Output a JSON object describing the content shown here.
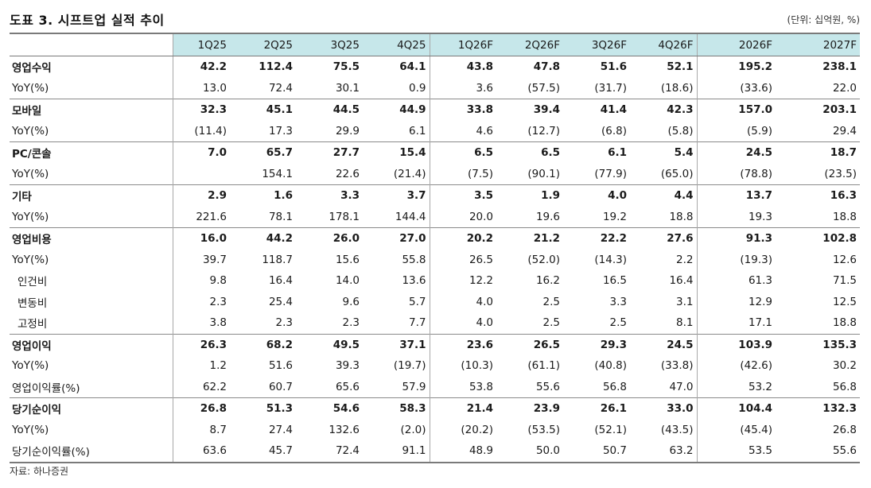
{
  "title": "도표 3. 시프트업 실적 추이",
  "unit": "(단위: 십억원, %)",
  "source": "자료: 하나증권",
  "columns": [
    "1Q25",
    "2Q25",
    "3Q25",
    "4Q25",
    "1Q26F",
    "2Q26F",
    "3Q26F",
    "4Q26F",
    "2026F",
    "2027F"
  ],
  "rows": [
    {
      "label": "영업수익",
      "values": [
        "42.2",
        "112.4",
        "75.5",
        "64.1",
        "43.8",
        "47.8",
        "51.6",
        "52.1",
        "195.2",
        "238.1"
      ]
    },
    {
      "label": "YoY(%)",
      "values": [
        "13.0",
        "72.4",
        "30.1",
        "0.9",
        "3.6",
        "(57.5)",
        "(31.7)",
        "(18.6)",
        "(33.6)",
        "22.0"
      ]
    },
    {
      "label": "모바일",
      "values": [
        "32.3",
        "45.1",
        "44.5",
        "44.9",
        "33.8",
        "39.4",
        "41.4",
        "42.3",
        "157.0",
        "203.1"
      ]
    },
    {
      "label": "YoY(%)",
      "values": [
        "(11.4)",
        "17.3",
        "29.9",
        "6.1",
        "4.6",
        "(12.7)",
        "(6.8)",
        "(5.8)",
        "(5.9)",
        "29.4"
      ]
    },
    {
      "label": "PC/콘솔",
      "values": [
        "7.0",
        "65.7",
        "27.7",
        "15.4",
        "6.5",
        "6.5",
        "6.1",
        "5.4",
        "24.5",
        "18.7"
      ]
    },
    {
      "label": "YoY(%)",
      "values": [
        "",
        "154.1",
        "22.6",
        "(21.4)",
        "(7.5)",
        "(90.1)",
        "(77.9)",
        "(65.0)",
        "(78.8)",
        "(23.5)"
      ]
    },
    {
      "label": "기타",
      "values": [
        "2.9",
        "1.6",
        "3.3",
        "3.7",
        "3.5",
        "1.9",
        "4.0",
        "4.4",
        "13.7",
        "16.3"
      ]
    },
    {
      "label": "YoY(%)",
      "values": [
        "221.6",
        "78.1",
        "178.1",
        "144.4",
        "20.0",
        "19.6",
        "19.2",
        "18.8",
        "19.3",
        "18.8"
      ]
    },
    {
      "label": "영업비용",
      "values": [
        "16.0",
        "44.2",
        "26.0",
        "27.0",
        "20.2",
        "21.2",
        "22.2",
        "27.6",
        "91.3",
        "102.8"
      ]
    },
    {
      "label": "YoY(%)",
      "values": [
        "39.7",
        "118.7",
        "15.6",
        "55.8",
        "26.5",
        "(52.0)",
        "(14.3)",
        "2.2",
        "(19.3)",
        "12.6"
      ]
    },
    {
      "label": "인건비",
      "values": [
        "9.8",
        "16.4",
        "14.0",
        "13.6",
        "12.2",
        "16.2",
        "16.5",
        "16.4",
        "61.3",
        "71.5"
      ]
    },
    {
      "label": "변동비",
      "values": [
        "2.3",
        "25.4",
        "9.6",
        "5.7",
        "4.0",
        "2.5",
        "3.3",
        "3.1",
        "12.9",
        "12.5"
      ]
    },
    {
      "label": "고정비",
      "values": [
        "3.8",
        "2.3",
        "2.3",
        "7.7",
        "4.0",
        "2.5",
        "2.5",
        "8.1",
        "17.1",
        "18.8"
      ]
    },
    {
      "label": "영업이익",
      "values": [
        "26.3",
        "68.2",
        "49.5",
        "37.1",
        "23.6",
        "26.5",
        "29.3",
        "24.5",
        "103.9",
        "135.3"
      ]
    },
    {
      "label": "YoY(%)",
      "values": [
        "1.2",
        "51.6",
        "39.3",
        "(19.7)",
        "(10.3)",
        "(61.1)",
        "(40.8)",
        "(33.8)",
        "(42.6)",
        "30.2"
      ]
    },
    {
      "label": "영업이익률(%)",
      "values": [
        "62.2",
        "60.7",
        "65.6",
        "57.9",
        "53.8",
        "55.6",
        "56.8",
        "47.0",
        "53.2",
        "56.8"
      ]
    },
    {
      "label": "당기순이익",
      "values": [
        "26.8",
        "51.3",
        "54.6",
        "58.3",
        "21.4",
        "23.9",
        "26.1",
        "33.0",
        "104.4",
        "132.3"
      ]
    },
    {
      "label": "YoY(%)",
      "values": [
        "8.7",
        "27.4",
        "132.6",
        "(2.0)",
        "(20.2)",
        "(53.5)",
        "(52.1)",
        "(43.5)",
        "(45.4)",
        "26.8"
      ]
    },
    {
      "label": "당기순이익률(%)",
      "values": [
        "63.6",
        "45.7",
        "72.4",
        "91.1",
        "48.9",
        "50.0",
        "50.7",
        "63.2",
        "53.5",
        "55.6"
      ]
    }
  ]
}
